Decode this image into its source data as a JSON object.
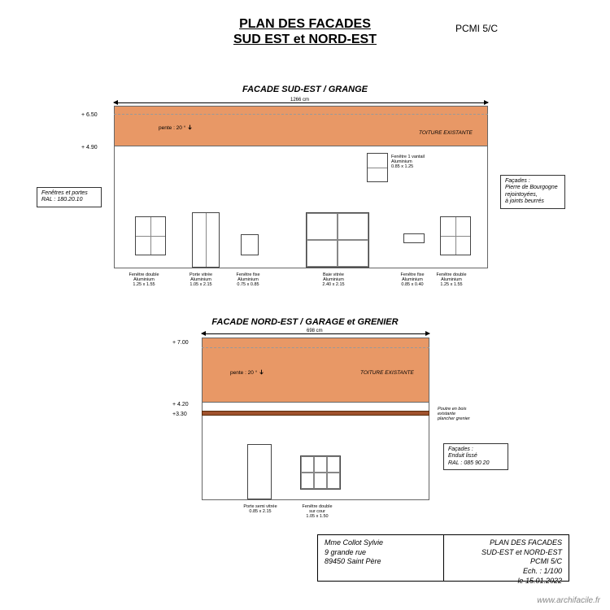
{
  "title": {
    "line1": "PLAN DES FACADES",
    "line2": "SUD EST et NORD-EST",
    "pcmi": "PCMI 5/C"
  },
  "facade1": {
    "title": "FACADE SUD-EST / GRANGE",
    "width_label": "1266 cm",
    "roof_color": "#e89866",
    "pente": "pente : 20 °",
    "roof_note": "TOITURE EXISTANTE",
    "alt_top": "+ 6.50",
    "alt_wall": "+ 4.90",
    "note_left": "Fenêtres et portes\nRAL : 180.20.10",
    "note_right": "Façades :\nPierre de Bourgogne\nrejointoyées,\nà joints beurrés",
    "upper_win": {
      "label": "Fenêtre 1 vantail\nAluminium\n0.85 x 1.25"
    },
    "items": [
      {
        "label": "Fenêtre double\nAluminium\n1.25 x 1.55"
      },
      {
        "label": "Porte vitrée\nAluminium\n1.05 x 2.15"
      },
      {
        "label": "Fenêtre fixe\nAluminium\n0.75 x 0.85"
      },
      {
        "label": "Baie vitrée\nAluminium\n2.40 x 2.15"
      },
      {
        "label": "Fenêtre fixe\nAluminium\n0.85 x 0.40"
      },
      {
        "label": "Fenêtre double\nAluminium\n1.25 x 1.55"
      }
    ]
  },
  "facade2": {
    "title": "FACADE NORD-EST / GARAGE et GRENIER",
    "width_label": "698 cm",
    "roof_color": "#e89866",
    "pente": "pente : 20 °",
    "roof_note": "TOITURE EXISTANTE",
    "alt_top": "+ 7.00",
    "alt_mid": "+ 4.20",
    "alt_beam": "+3.30",
    "beam_note": "Poutre en bois\nexistante\nplancher grenier",
    "note_right": "Façades :\nEnduit lissé\nRAL : 085 90 20",
    "items": [
      {
        "label": "Porte semi vitrée\n0.85 x 2.15"
      },
      {
        "label": "Fenêtre double\nsur cour\n1.05 x 1.50"
      }
    ]
  },
  "footer": {
    "left": "Mme Collot Sylvie\n9 grande rue\n89450 Saint Père",
    "right": "PLAN DES FACADES\nSUD-EST et NORD-EST\nPCMI 5/C\nEch. : 1/100\nle 15.01.2022"
  },
  "watermark": "www.archifacile.fr"
}
